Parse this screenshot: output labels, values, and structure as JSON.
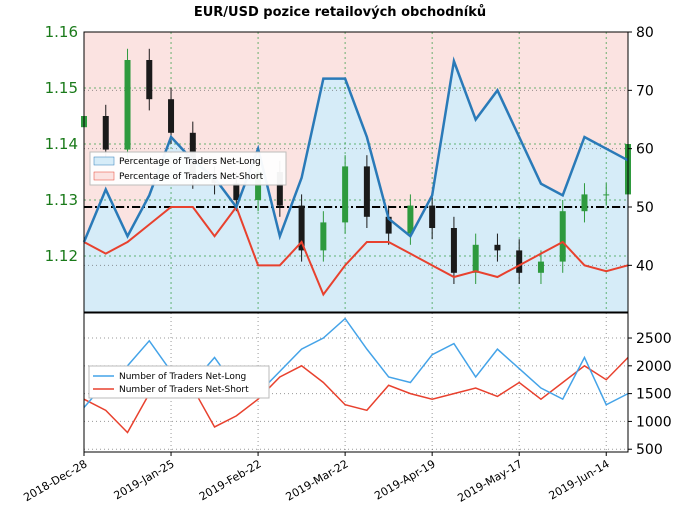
{
  "chart_data": [
    {
      "type": "line",
      "title": "EUR/USD pozice retailových obchodníků",
      "x": [
        "2018-Dec-28",
        "2019-Jan-04",
        "2019-Jan-11",
        "2019-Jan-18",
        "2019-Jan-25",
        "2019-Feb-01",
        "2019-Feb-08",
        "2019-Feb-15",
        "2019-Feb-22",
        "2019-Mar-01",
        "2019-Mar-08",
        "2019-Mar-15",
        "2019-Mar-22",
        "2019-Mar-29",
        "2019-Apr-05",
        "2019-Apr-12",
        "2019-Apr-19",
        "2019-Apr-26",
        "2019-May-03",
        "2019-May-10",
        "2019-May-17",
        "2019-May-24",
        "2019-May-31",
        "2019-Jun-07",
        "2019-Jun-14",
        "2019-Jun-21"
      ],
      "x_tick_labels": [
        "2018-Dec-28",
        "2019-Jan-25",
        "2019-Feb-22",
        "2019-Mar-22",
        "2019-Apr-19",
        "2019-May-17",
        "2019-Jun-14"
      ],
      "left_axis": {
        "ticks": [
          "1.12",
          "1.13",
          "1.14",
          "1.15",
          "1.16"
        ],
        "ylim": [
          1.11,
          1.16
        ]
      },
      "right_axis": {
        "ticks": [
          "40",
          "50",
          "60",
          "70",
          "80"
        ],
        "ylim": [
          32,
          80
        ]
      },
      "reference_line": 50,
      "series": [
        {
          "name": "Percentage of Traders Net-Long",
          "axis": "right",
          "values": [
            44,
            53,
            45,
            52,
            62,
            58,
            55,
            50,
            60,
            45,
            55,
            72,
            72,
            62,
            48,
            45,
            52,
            75,
            65,
            70,
            62,
            54,
            52,
            62,
            60,
            58
          ]
        },
        {
          "name": "Percentage of Traders Net-Short",
          "axis": "right",
          "values": [
            44,
            42,
            44,
            47,
            50,
            50,
            45,
            50,
            40,
            40,
            44,
            35,
            40,
            44,
            44,
            42,
            40,
            38,
            39,
            38,
            40,
            42,
            44,
            40,
            39,
            40
          ]
        },
        {
          "name": "EUR/USD",
          "axis": "left",
          "type": "candlestick",
          "values": [
            1.145,
            1.139,
            1.155,
            1.148,
            1.142,
            1.134,
            1.133,
            1.13,
            1.135,
            1.129,
            1.121,
            1.126,
            1.136,
            1.127,
            1.124,
            1.129,
            1.125,
            1.117,
            1.122,
            1.121,
            1.117,
            1.119,
            1.128,
            1.131,
            1.131,
            1.14
          ]
        }
      ],
      "legend": {
        "placement": "upper-left"
      },
      "grid": true
    },
    {
      "type": "line",
      "right_axis": {
        "ticks": [
          "500",
          "1000",
          "1500",
          "2000",
          "2500"
        ],
        "ylim": [
          450,
          2950
        ]
      },
      "series": [
        {
          "name": "Number of Traders Net-Long",
          "values": [
            1250,
            1700,
            2000,
            2450,
            1900,
            1700,
            2150,
            1600,
            1500,
            1900,
            2300,
            2500,
            2850,
            2300,
            1800,
            1700,
            2200,
            2400,
            1800,
            2300,
            1950,
            1600,
            1400,
            2150,
            1300,
            1500
          ]
        },
        {
          "name": "Number of Traders Net-Short",
          "values": [
            1400,
            1200,
            800,
            1500,
            1500,
            1600,
            900,
            1100,
            1400,
            1800,
            2000,
            1700,
            1300,
            1200,
            1650,
            1500,
            1400,
            1500,
            1600,
            1450,
            1700,
            1400,
            1700,
            2000,
            1750,
            2150
          ]
        }
      ],
      "legend": {
        "placement": "upper-left"
      },
      "grid": true
    }
  ],
  "colors": {
    "long_line": "#2a7ab8",
    "short_line": "#e8412e",
    "long_fill": "#d6ecf8",
    "short_fill": "#fbe3e1",
    "bull_candle": "#2e9a3e",
    "bear_candle": "#1a1a1a",
    "grid": "#2e9a3e",
    "tick_left": "#1a7a1a",
    "count_long": "#44a3e8",
    "count_short": "#e8412e"
  }
}
